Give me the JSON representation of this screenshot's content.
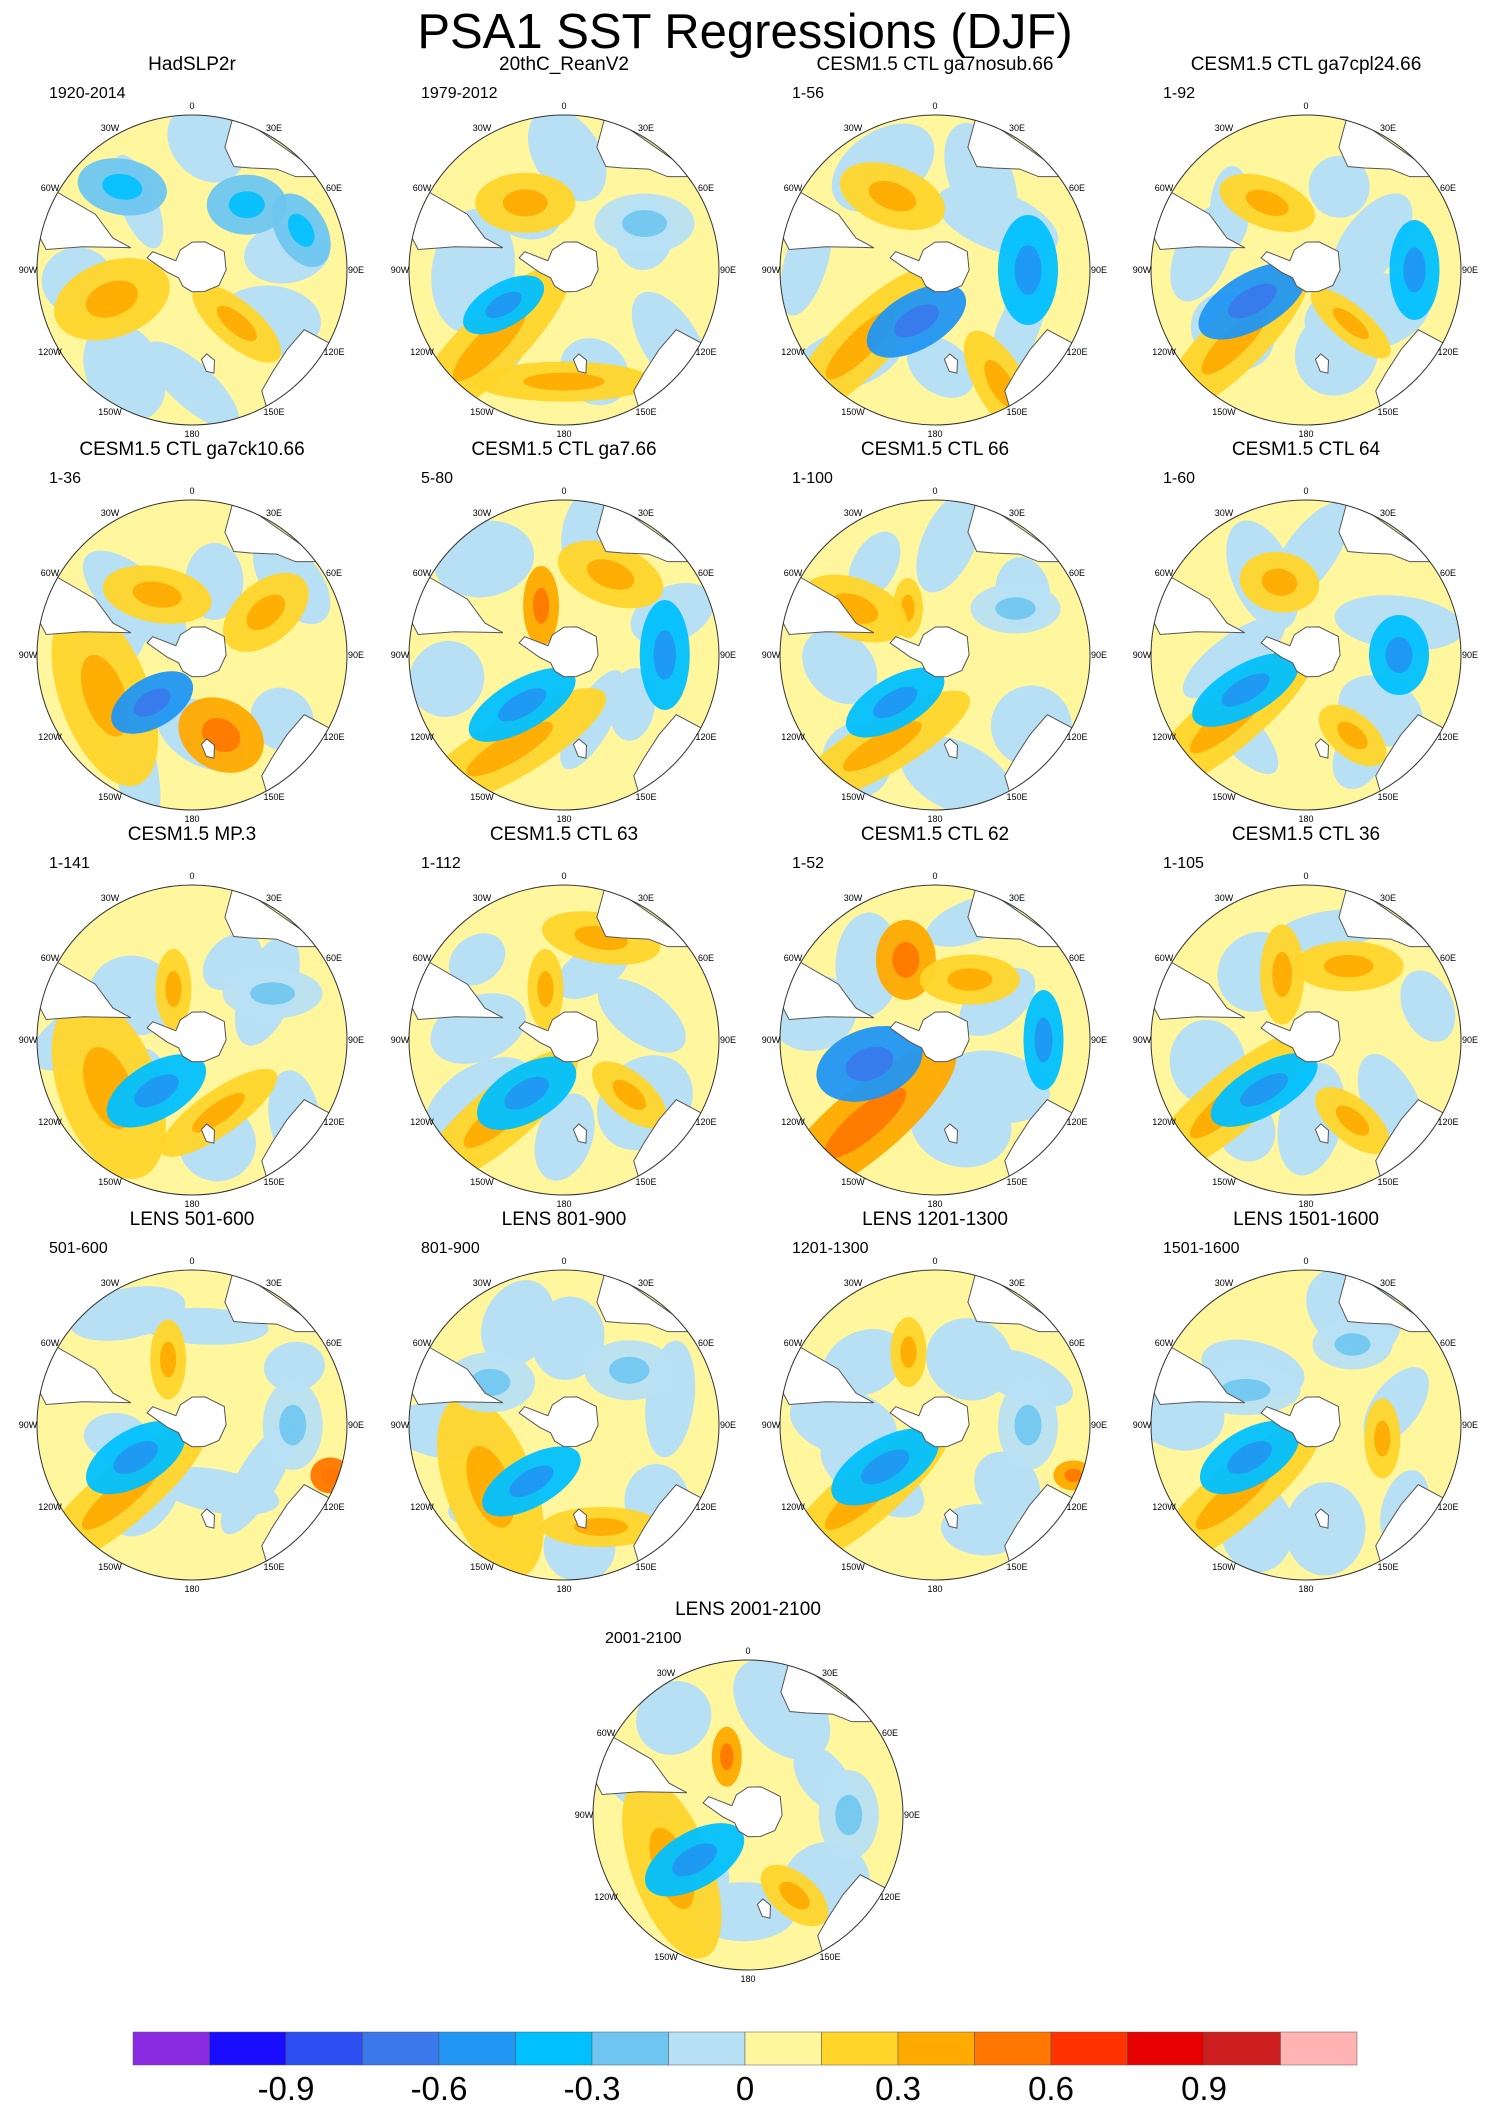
{
  "figure": {
    "title": "PSA1 SST Regressions (DJF)"
  },
  "colors": {
    "land": "#ffffff",
    "coast": "#555555",
    "border": "#333333"
  },
  "lon_labels": [
    "0",
    "30E",
    "60E",
    "90E",
    "120E",
    "150E",
    "180",
    "150W",
    "120W",
    "90W",
    "60W",
    "30W"
  ],
  "panels": [
    {
      "title": "HadSLP2r",
      "years": "1920-2014"
    },
    {
      "title": "20thC_ReanV2",
      "years": "1979-2012"
    },
    {
      "title": "CESM1.5 CTL ga7nosub.66",
      "years": "1-56"
    },
    {
      "title": "CESM1.5 CTL ga7cpl24.66",
      "years": "1-92"
    },
    {
      "title": "CESM1.5 CTL ga7ck10.66",
      "years": "1-36"
    },
    {
      "title": "CESM1.5 CTL ga7.66",
      "years": "5-80"
    },
    {
      "title": "CESM1.5 CTL 66",
      "years": "1-100"
    },
    {
      "title": "CESM1.5 CTL 64",
      "years": "1-60"
    },
    {
      "title": "CESM1.5 MP.3",
      "years": "1-141"
    },
    {
      "title": "CESM1.5 CTL 63",
      "years": "1-112"
    },
    {
      "title": "CESM1.5 CTL 62",
      "years": "1-52"
    },
    {
      "title": "CESM1.5 CTL 36",
      "years": "1-105"
    },
    {
      "title": "LENS 501-600",
      "years": "501-600"
    },
    {
      "title": "LENS 801-900",
      "years": "801-900"
    },
    {
      "title": "LENS 1201-1300",
      "years": "1201-1300"
    },
    {
      "title": "LENS 1501-1600",
      "years": "1501-1600"
    },
    {
      "title": "LENS 2001-2100",
      "years": "2001-2100"
    }
  ],
  "colorbar": {
    "colors": [
      "#8a2be2",
      "#1a0dff",
      "#2d4ef0",
      "#3a78ec",
      "#2196f3",
      "#00c0ff",
      "#6ec6f0",
      "#b8e0f4",
      "#fff69e",
      "#ffd52a",
      "#ffaa00",
      "#ff7700",
      "#ff3300",
      "#e60000",
      "#cc1e1e",
      "#ffb3b3"
    ],
    "tick_labels": [
      "-0.9",
      "-0.6",
      "-0.3",
      "0",
      "0.3",
      "0.6",
      "0.9"
    ]
  }
}
